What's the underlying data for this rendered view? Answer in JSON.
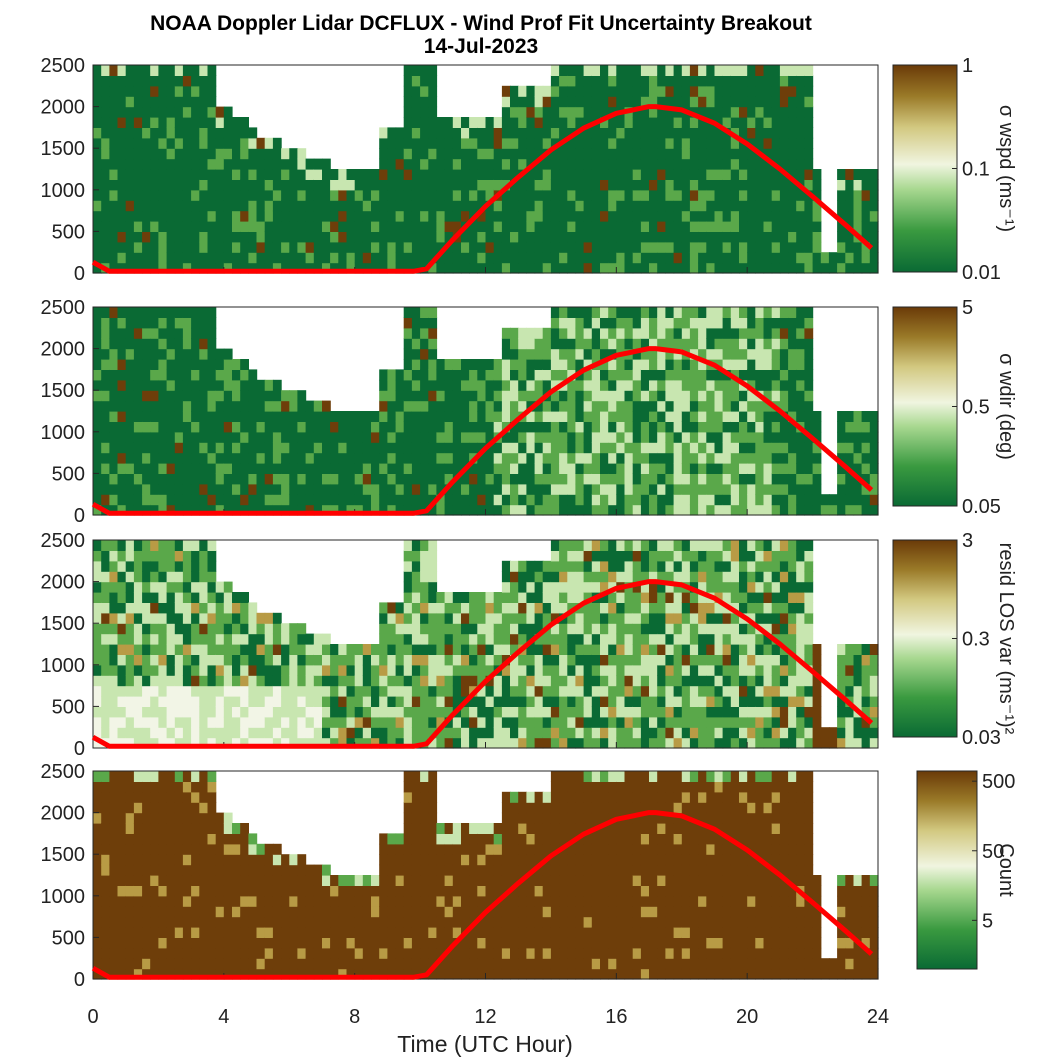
{
  "figure": {
    "title": "NOAA Doppler Lidar DCFLUX - Wind Prof Fit Uncertainty Breakout",
    "subtitle": "14-Jul-2023"
  },
  "colors": {
    "dark_green": "#0a6a34",
    "mid_green": "#5aa84a",
    "light_green": "#c8e6b0",
    "pale": "#f2f5e6",
    "tan": "#b89b45",
    "brown": "#6e3e0a",
    "sun_curve": "#ff0000"
  },
  "chart_data": [
    {
      "type": "heatmap",
      "xlabel": "",
      "ylabel": "",
      "xlim": [
        0,
        24
      ],
      "ylim": [
        0,
        2500
      ],
      "yticks": [
        "0",
        "500",
        "1000",
        "1500",
        "2000",
        "2500"
      ],
      "colorbar": {
        "label": "σ wspd (ms⁻¹)",
        "scale": "log",
        "range": [
          0.01,
          1
        ],
        "ticks": [
          "0.01",
          "0.1",
          "1"
        ]
      },
      "overlay_curve": {
        "x": [
          0,
          0.5,
          1,
          2,
          3,
          4,
          5,
          6,
          7,
          8,
          9,
          9.8,
          10.2,
          11,
          12,
          13,
          14,
          15,
          16,
          17,
          17.2,
          18,
          19,
          20,
          21,
          22,
          23,
          23.8
        ],
        "y": [
          130,
          20,
          20,
          20,
          20,
          20,
          20,
          20,
          20,
          20,
          20,
          20,
          50,
          400,
          800,
          1150,
          1480,
          1740,
          1920,
          2000,
          2000,
          1960,
          1800,
          1550,
          1250,
          920,
          580,
          300
        ]
      }
    },
    {
      "type": "heatmap",
      "xlabel": "",
      "ylabel": "",
      "xlim": [
        0,
        24
      ],
      "ylim": [
        0,
        2500
      ],
      "yticks": [
        "0",
        "500",
        "1000",
        "1500",
        "2000",
        "2500"
      ],
      "colorbar": {
        "label": "σ wdir (deg)",
        "scale": "log",
        "range": [
          0.05,
          5
        ],
        "ticks": [
          "0.05",
          "0.5",
          "5"
        ]
      },
      "overlay_curve": {
        "x": [
          0,
          0.5,
          1,
          2,
          3,
          4,
          5,
          6,
          7,
          8,
          9,
          9.8,
          10.2,
          11,
          12,
          13,
          14,
          15,
          16,
          17,
          17.2,
          18,
          19,
          20,
          21,
          22,
          23,
          23.8
        ],
        "y": [
          130,
          20,
          20,
          20,
          20,
          20,
          20,
          20,
          20,
          20,
          20,
          20,
          50,
          400,
          800,
          1150,
          1480,
          1740,
          1920,
          2000,
          2000,
          1960,
          1800,
          1550,
          1250,
          920,
          580,
          300
        ]
      }
    },
    {
      "type": "heatmap",
      "xlabel": "",
      "ylabel": "",
      "xlim": [
        0,
        24
      ],
      "ylim": [
        0,
        2500
      ],
      "yticks": [
        "0",
        "500",
        "1000",
        "1500",
        "2000",
        "2500"
      ],
      "colorbar": {
        "label": "resid LOS var (ms⁻¹)²",
        "scale": "log",
        "range": [
          0.03,
          3
        ],
        "ticks": [
          "0.03",
          "0.3",
          "3"
        ]
      },
      "overlay_curve": {
        "x": [
          0,
          0.5,
          1,
          2,
          3,
          4,
          5,
          6,
          7,
          8,
          9,
          9.8,
          10.2,
          11,
          12,
          13,
          14,
          15,
          16,
          17,
          17.2,
          18,
          19,
          20,
          21,
          22,
          23,
          23.8
        ],
        "y": [
          130,
          20,
          20,
          20,
          20,
          20,
          20,
          20,
          20,
          20,
          20,
          20,
          50,
          400,
          800,
          1150,
          1480,
          1740,
          1920,
          2000,
          2000,
          1960,
          1800,
          1550,
          1250,
          920,
          580,
          300
        ]
      }
    },
    {
      "type": "heatmap",
      "xlabel": "Time (UTC Hour)",
      "ylabel": "",
      "xlim": [
        0,
        24
      ],
      "ylim": [
        0,
        2500
      ],
      "xticks": [
        "0",
        "4",
        "8",
        "12",
        "16",
        "20",
        "24"
      ],
      "yticks": [
        "0",
        "500",
        "1000",
        "1500",
        "2000",
        "2500"
      ],
      "colorbar": {
        "label": "Count",
        "scale": "log",
        "range": [
          1,
          700
        ],
        "ticks": [
          "5",
          "50",
          "500"
        ]
      },
      "overlay_curve": {
        "x": [
          0,
          0.5,
          1,
          2,
          3,
          4,
          5,
          6,
          7,
          8,
          9,
          9.8,
          10.2,
          11,
          12,
          13,
          14,
          15,
          16,
          17,
          17.2,
          18,
          19,
          20,
          21,
          22,
          23,
          23.8
        ],
        "y": [
          130,
          20,
          20,
          20,
          20,
          20,
          20,
          20,
          20,
          20,
          20,
          20,
          50,
          400,
          800,
          1150,
          1480,
          1740,
          1920,
          2000,
          2000,
          1960,
          1800,
          1550,
          1250,
          920,
          580,
          300
        ]
      }
    }
  ]
}
